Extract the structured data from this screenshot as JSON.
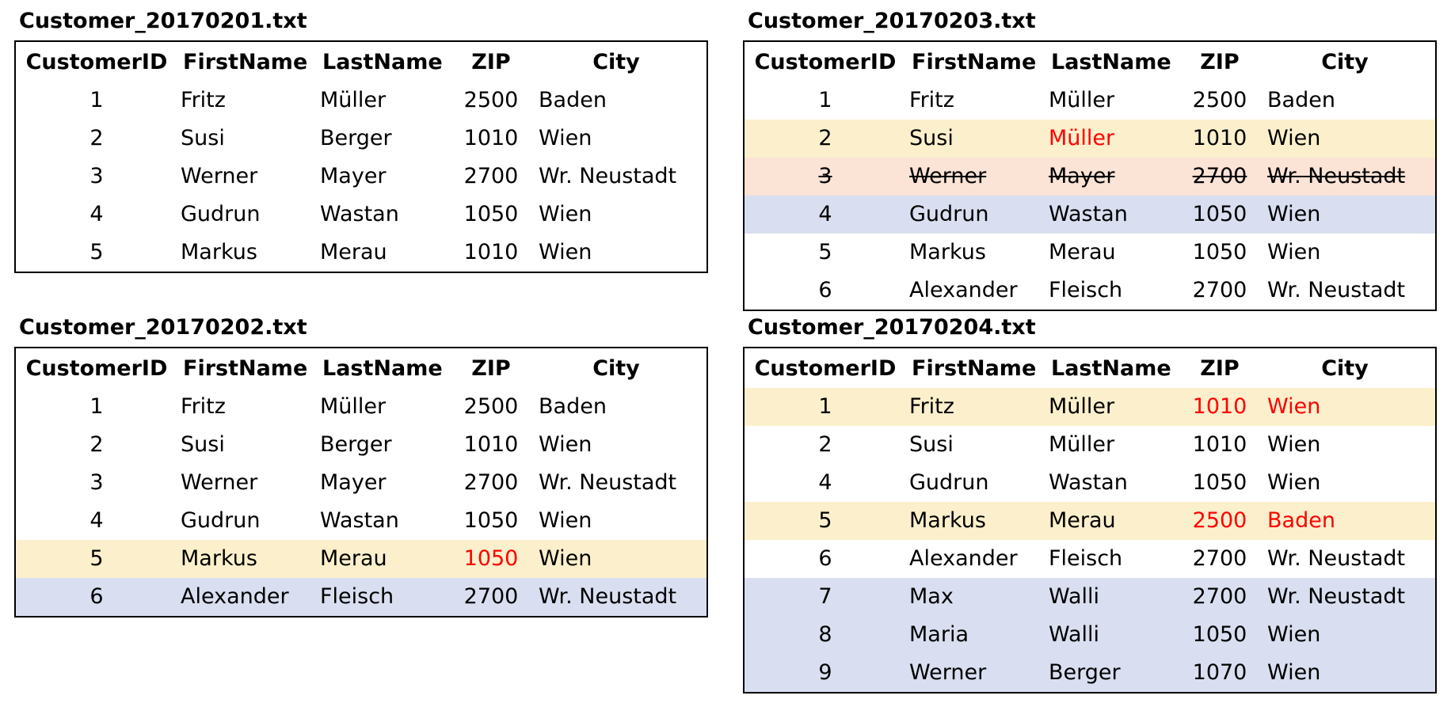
{
  "columns": [
    "CustomerID",
    "FirstName",
    "LastName",
    "ZIP",
    "City"
  ],
  "tables": [
    {
      "title": "Customer_20170201.txt",
      "rows": [
        {
          "id": "1",
          "first": "Fritz",
          "last": "Müller",
          "zip": "2500",
          "city": "Baden"
        },
        {
          "id": "2",
          "first": "Susi",
          "last": "Berger",
          "zip": "1010",
          "city": "Wien"
        },
        {
          "id": "3",
          "first": "Werner",
          "last": "Mayer",
          "zip": "2700",
          "city": "Wr. Neustadt"
        },
        {
          "id": "4",
          "first": "Gudrun",
          "last": "Wastan",
          "zip": "1050",
          "city": "Wien"
        },
        {
          "id": "5",
          "first": "Markus",
          "last": "Merau",
          "zip": "1010",
          "city": "Wien"
        }
      ]
    },
    {
      "title": "Customer_20170202.txt",
      "rows": [
        {
          "id": "1",
          "first": "Fritz",
          "last": "Müller",
          "zip": "2500",
          "city": "Baden"
        },
        {
          "id": "2",
          "first": "Susi",
          "last": "Berger",
          "zip": "1010",
          "city": "Wien"
        },
        {
          "id": "3",
          "first": "Werner",
          "last": "Mayer",
          "zip": "2700",
          "city": "Wr. Neustadt"
        },
        {
          "id": "4",
          "first": "Gudrun",
          "last": "Wastan",
          "zip": "1050",
          "city": "Wien"
        },
        {
          "id": "5",
          "first": "Markus",
          "last": "Merau",
          "zip": "1050",
          "city": "Wien",
          "highlight": "yellow",
          "changed": [
            "zip"
          ]
        },
        {
          "id": "6",
          "first": "Alexander",
          "last": "Fleisch",
          "zip": "2700",
          "city": "Wr. Neustadt",
          "highlight": "blue"
        }
      ]
    },
    {
      "title": "Customer_20170203.txt",
      "rows": [
        {
          "id": "1",
          "first": "Fritz",
          "last": "Müller",
          "zip": "2500",
          "city": "Baden"
        },
        {
          "id": "2",
          "first": "Susi",
          "last": "Müller",
          "zip": "1010",
          "city": "Wien",
          "highlight": "yellow",
          "changed": [
            "last"
          ]
        },
        {
          "id": "3",
          "first": "Werner",
          "last": "Mayer",
          "zip": "2700",
          "city": "Wr. Neustadt",
          "highlight": "orange",
          "deleted": true
        },
        {
          "id": "4",
          "first": "Gudrun",
          "last": "Wastan",
          "zip": "1050",
          "city": "Wien",
          "highlight": "blue"
        },
        {
          "id": "5",
          "first": "Markus",
          "last": "Merau",
          "zip": "1050",
          "city": "Wien"
        },
        {
          "id": "6",
          "first": "Alexander",
          "last": "Fleisch",
          "zip": "2700",
          "city": "Wr. Neustadt"
        }
      ]
    },
    {
      "title": "Customer_20170204.txt",
      "rows": [
        {
          "id": "1",
          "first": "Fritz",
          "last": "Müller",
          "zip": "1010",
          "city": "Wien",
          "highlight": "yellow",
          "changed": [
            "zip",
            "city"
          ]
        },
        {
          "id": "2",
          "first": "Susi",
          "last": "Müller",
          "zip": "1010",
          "city": "Wien"
        },
        {
          "id": "4",
          "first": "Gudrun",
          "last": "Wastan",
          "zip": "1050",
          "city": "Wien"
        },
        {
          "id": "5",
          "first": "Markus",
          "last": "Merau",
          "zip": "2500",
          "city": "Baden",
          "highlight": "yellow",
          "changed": [
            "zip",
            "city"
          ]
        },
        {
          "id": "6",
          "first": "Alexander",
          "last": "Fleisch",
          "zip": "2700",
          "city": "Wr. Neustadt"
        },
        {
          "id": "7",
          "first": "Max",
          "last": "Walli",
          "zip": "2700",
          "city": "Wr. Neustadt",
          "highlight": "blue"
        },
        {
          "id": "8",
          "first": "Maria",
          "last": "Walli",
          "zip": "1050",
          "city": "Wien",
          "highlight": "blue"
        },
        {
          "id": "9",
          "first": "Werner",
          "last": "Berger",
          "zip": "1070",
          "city": "Wien",
          "highlight": "blue"
        }
      ]
    }
  ],
  "colors": {
    "highlight_yellow": "#fcf0cc",
    "highlight_orange": "#fbe3d6",
    "highlight_blue": "#d9dff0",
    "changed_text": "#ff0000"
  }
}
